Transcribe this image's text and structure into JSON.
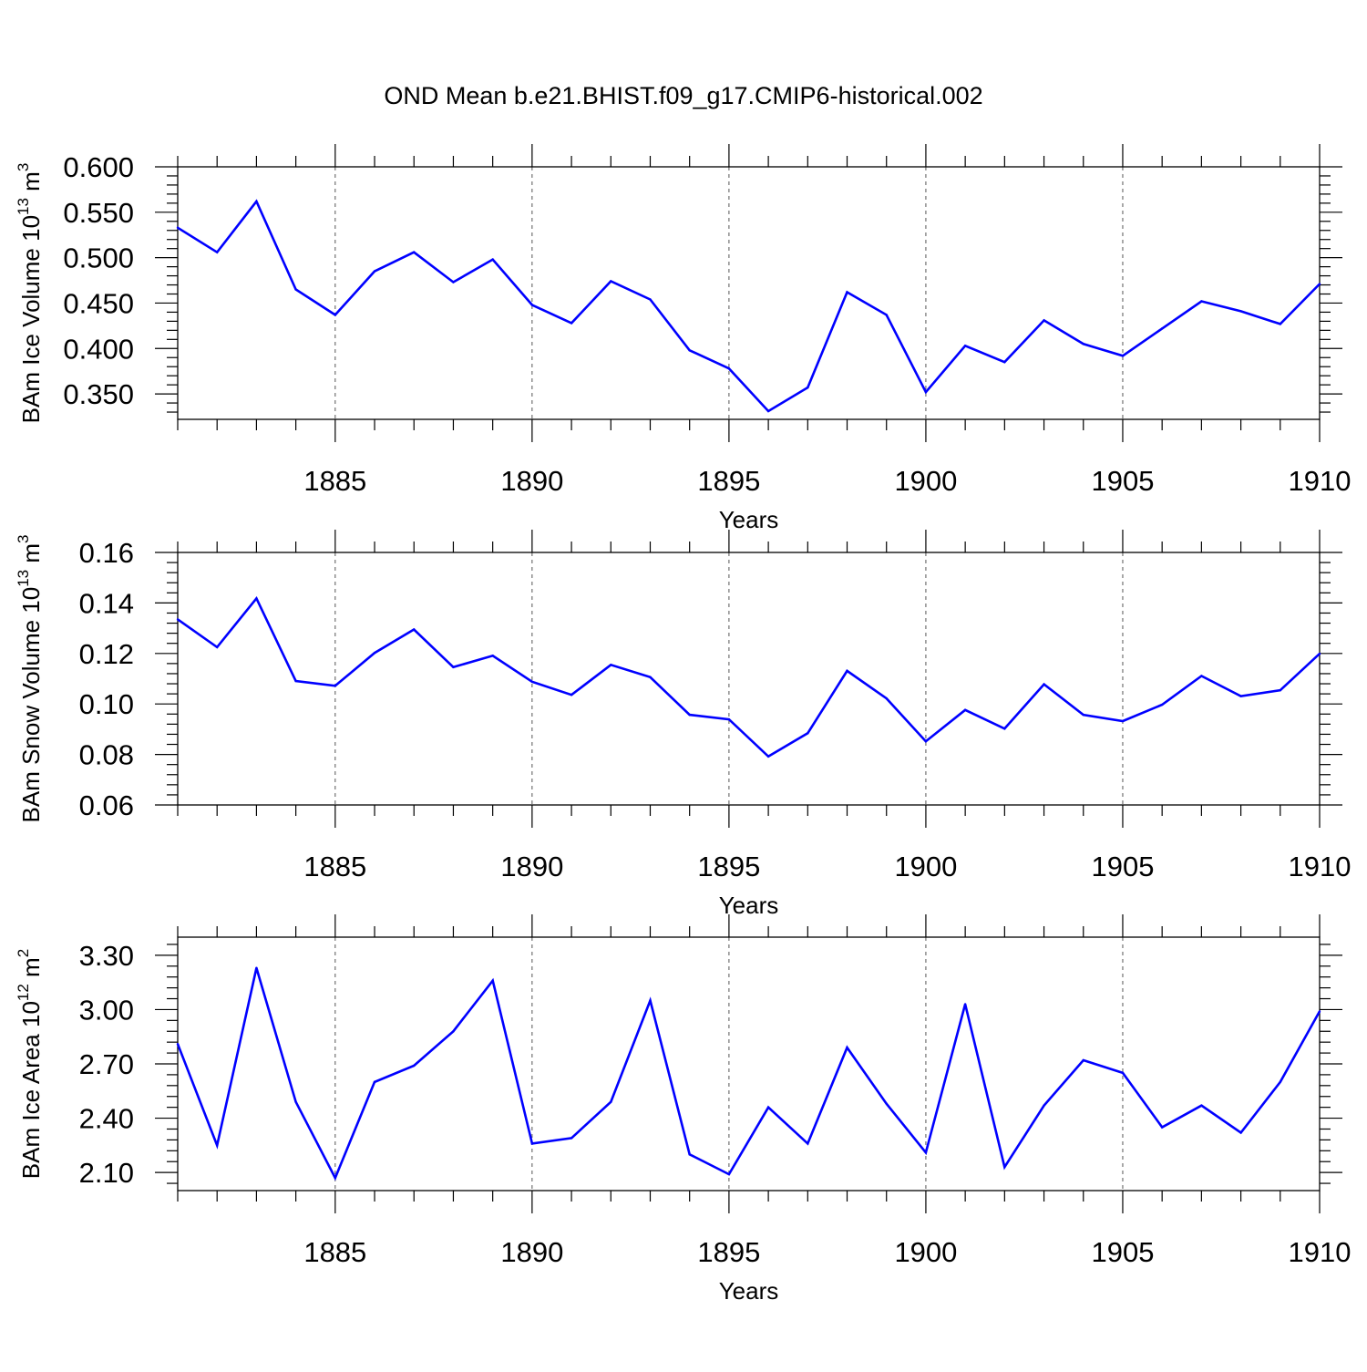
{
  "title": "OND Mean b.e21.BHIST.f09_g17.CMIP6-historical.002",
  "colors": {
    "line": "#0000ff",
    "axis": "#000000",
    "grid": "#555555"
  },
  "chart_data": [
    {
      "type": "line",
      "ylabel_main": "BAm Ice Volume 10",
      "ylabel_exp": "13",
      "ylabel_unit": " m",
      "ylabel_unit_exp": "3",
      "xlabel": "Years",
      "xlim": [
        1881,
        1910
      ],
      "ylim": [
        0.322,
        0.6
      ],
      "yticks": [
        0.35,
        0.4,
        0.45,
        0.5,
        0.55,
        0.6
      ],
      "ytick_labels": [
        "0.350",
        "0.400",
        "0.450",
        "0.500",
        "0.550",
        "0.600"
      ],
      "xticks": [
        1885,
        1890,
        1895,
        1900,
        1905,
        1910
      ],
      "xtick_labels": [
        "1885",
        "1890",
        "1895",
        "1900",
        "1905",
        "1910"
      ],
      "grid": "vertical dashed at major x ticks",
      "x": [
        1881,
        1882,
        1883,
        1884,
        1885,
        1886,
        1887,
        1888,
        1889,
        1890,
        1891,
        1892,
        1893,
        1894,
        1895,
        1896,
        1897,
        1898,
        1899,
        1900,
        1901,
        1902,
        1903,
        1904,
        1905,
        1906,
        1907,
        1908,
        1909,
        1910
      ],
      "values": [
        0.533,
        0.506,
        0.562,
        0.465,
        0.437,
        0.485,
        0.506,
        0.473,
        0.498,
        0.448,
        0.428,
        0.474,
        0.454,
        0.398,
        0.378,
        0.331,
        0.357,
        0.462,
        0.437,
        0.352,
        0.403,
        0.385,
        0.431,
        0.405,
        0.392,
        0.422,
        0.452,
        0.441,
        0.427,
        0.471
      ]
    },
    {
      "type": "line",
      "ylabel_main": "BAm Snow Volume 10",
      "ylabel_exp": "13",
      "ylabel_unit": " m",
      "ylabel_unit_exp": "3",
      "xlabel": "Years",
      "xlim": [
        1881,
        1910
      ],
      "ylim": [
        0.06,
        0.16
      ],
      "yticks": [
        0.06,
        0.08,
        0.1,
        0.12,
        0.14,
        0.16
      ],
      "ytick_labels": [
        "0.06",
        "0.08",
        "0.10",
        "0.12",
        "0.14",
        "0.16"
      ],
      "xticks": [
        1885,
        1890,
        1895,
        1900,
        1905,
        1910
      ],
      "xtick_labels": [
        "1885",
        "1890",
        "1895",
        "1900",
        "1905",
        "1910"
      ],
      "grid": "vertical dashed at major x ticks",
      "x": [
        1881,
        1882,
        1883,
        1884,
        1885,
        1886,
        1887,
        1888,
        1889,
        1890,
        1891,
        1892,
        1893,
        1894,
        1895,
        1896,
        1897,
        1898,
        1899,
        1900,
        1901,
        1902,
        1903,
        1904,
        1905,
        1906,
        1907,
        1908,
        1909,
        1910
      ],
      "values": [
        0.1335,
        0.1225,
        0.1418,
        0.1091,
        0.1072,
        0.1202,
        0.1295,
        0.1146,
        0.1191,
        0.1088,
        0.1036,
        0.1155,
        0.1106,
        0.0957,
        0.0939,
        0.0792,
        0.0884,
        0.1131,
        0.1022,
        0.0852,
        0.0976,
        0.0902,
        0.1078,
        0.0957,
        0.0932,
        0.0997,
        0.1111,
        0.1031,
        0.1054,
        0.1199
      ]
    },
    {
      "type": "line",
      "ylabel_main": "BAm Ice Area 10",
      "ylabel_exp": "12",
      "ylabel_unit": " m",
      "ylabel_unit_exp": "2",
      "xlabel": "Years",
      "xlim": [
        1881,
        1910
      ],
      "ylim": [
        2.0,
        3.4
      ],
      "yticks": [
        2.1,
        2.4,
        2.7,
        3.0,
        3.3
      ],
      "ytick_labels": [
        "2.10",
        "2.40",
        "2.70",
        "3.00",
        "3.30"
      ],
      "xticks": [
        1885,
        1890,
        1895,
        1900,
        1905,
        1910
      ],
      "xtick_labels": [
        "1885",
        "1890",
        "1895",
        "1900",
        "1905",
        "1910"
      ],
      "grid": "vertical dashed at major x ticks",
      "x": [
        1881,
        1882,
        1883,
        1884,
        1885,
        1886,
        1887,
        1888,
        1889,
        1890,
        1891,
        1892,
        1893,
        1894,
        1895,
        1896,
        1897,
        1898,
        1899,
        1900,
        1901,
        1902,
        1903,
        1904,
        1905,
        1906,
        1907,
        1908,
        1909,
        1910
      ],
      "values": [
        2.81,
        2.25,
        3.23,
        2.49,
        2.07,
        2.6,
        2.69,
        2.88,
        3.16,
        2.26,
        2.29,
        2.49,
        3.05,
        2.2,
        2.09,
        2.46,
        2.26,
        2.79,
        2.48,
        2.21,
        3.03,
        2.13,
        2.47,
        2.72,
        2.65,
        2.35,
        2.47,
        2.32,
        2.6,
        2.99
      ]
    }
  ]
}
